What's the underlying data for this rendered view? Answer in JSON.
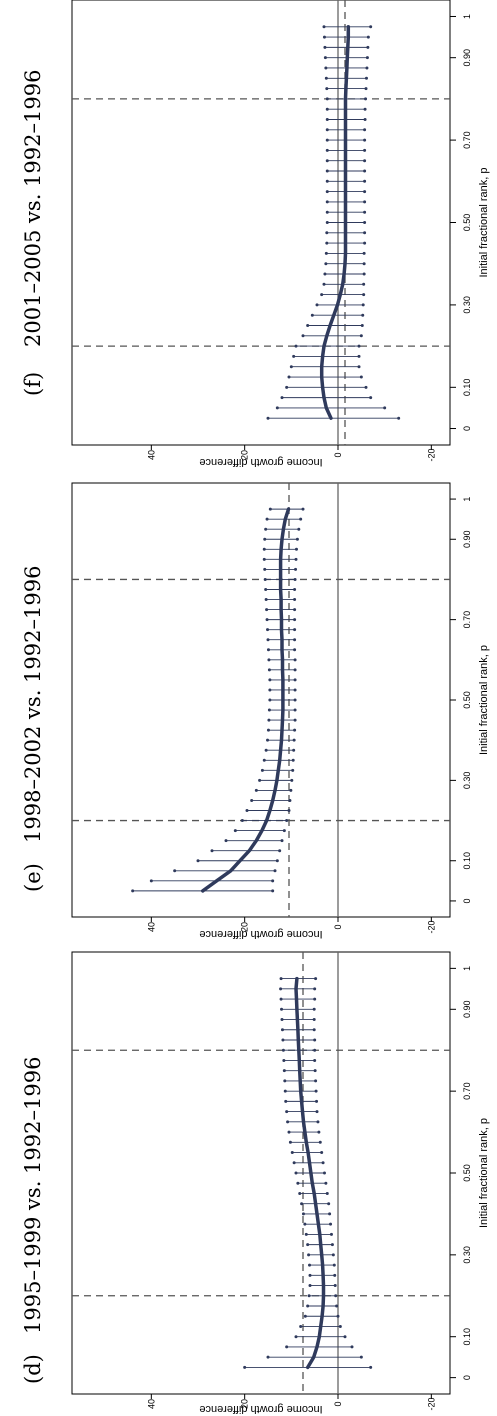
{
  "chart_data": [
    {
      "type": "line",
      "panel_label": "(d)",
      "title": "1995–1999 vs. 1992–1996",
      "xlabel": "Initial fractional rank, p",
      "ylabel": "Income growth difference",
      "xlim": [
        -0.04,
        1.04
      ],
      "ylim": [
        -24,
        57
      ],
      "x_ticks": [
        0,
        0.1,
        0.3,
        0.5,
        0.7,
        0.9,
        1
      ],
      "x_tick_labels": [
        "0",
        "0.10",
        "0.30",
        "0.50",
        "0.70",
        "0.90",
        "1"
      ],
      "y_ticks": [
        -20,
        0,
        20,
        40
      ],
      "y_tick_labels": [
        "-20",
        "0",
        "20",
        "40"
      ],
      "reference_lines": {
        "vertical": [
          0.2,
          0.8
        ],
        "horizontal_solid": 0,
        "horizontal_dashed": 7.5
      },
      "x": [
        0.025,
        0.05,
        0.075,
        0.1,
        0.125,
        0.15,
        0.175,
        0.2,
        0.225,
        0.25,
        0.275,
        0.3,
        0.325,
        0.35,
        0.375,
        0.4,
        0.425,
        0.45,
        0.475,
        0.5,
        0.525,
        0.55,
        0.575,
        0.6,
        0.625,
        0.65,
        0.675,
        0.7,
        0.725,
        0.75,
        0.775,
        0.8,
        0.825,
        0.85,
        0.875,
        0.9,
        0.925,
        0.95,
        0.975
      ],
      "estimate": [
        6.5,
        5.2,
        4.5,
        4.0,
        3.7,
        3.4,
        3.2,
        3.1,
        3.1,
        3.2,
        3.3,
        3.5,
        3.7,
        3.9,
        4.2,
        4.5,
        4.8,
        5.1,
        5.5,
        5.8,
        6.1,
        6.4,
        6.8,
        7.1,
        7.4,
        7.6,
        7.8,
        8.0,
        8.1,
        8.2,
        8.3,
        8.4,
        8.5,
        8.6,
        8.7,
        8.8,
        8.9,
        9.0,
        8.8
      ],
      "ci_lower": [
        -7,
        -5,
        -3,
        -1.5,
        -0.5,
        0,
        0.3,
        0.5,
        0.6,
        0.7,
        0.8,
        1.0,
        1.2,
        1.4,
        1.6,
        1.8,
        2.0,
        2.3,
        2.6,
        2.9,
        3.2,
        3.5,
        3.8,
        4.1,
        4.3,
        4.5,
        4.6,
        4.7,
        4.8,
        4.9,
        5.0,
        5.0,
        5.0,
        5.1,
        5.1,
        5.1,
        5.0,
        5.0,
        4.8
      ],
      "ci_upper": [
        20,
        15,
        11,
        9,
        8,
        7,
        6.5,
        6.2,
        6.0,
        6.0,
        6.1,
        6.3,
        6.5,
        6.8,
        7.1,
        7.4,
        7.8,
        8.2,
        8.6,
        9.0,
        9.4,
        9.8,
        10.2,
        10.5,
        10.8,
        11.0,
        11.2,
        11.3,
        11.4,
        11.5,
        11.6,
        11.7,
        11.8,
        11.9,
        12.0,
        12.1,
        12.2,
        12.3,
        12.2
      ]
    },
    {
      "type": "line",
      "panel_label": "(e)",
      "title": "1998–2002 vs. 1992–1996",
      "xlabel": "Initial fractional rank, p",
      "ylabel": "Income growth difference",
      "xlim": [
        -0.04,
        1.04
      ],
      "ylim": [
        -24,
        57
      ],
      "x_ticks": [
        0,
        0.1,
        0.3,
        0.5,
        0.7,
        0.9,
        1
      ],
      "x_tick_labels": [
        "0",
        "0.10",
        "0.30",
        "0.50",
        "0.70",
        "0.90",
        "1"
      ],
      "y_ticks": [
        -20,
        0,
        20,
        40
      ],
      "y_tick_labels": [
        "-20",
        "0",
        "20",
        "40"
      ],
      "reference_lines": {
        "vertical": [
          0.2,
          0.8
        ],
        "horizontal_solid": 0,
        "horizontal_dashed": 10.5
      },
      "x": [
        0.025,
        0.05,
        0.075,
        0.1,
        0.125,
        0.15,
        0.175,
        0.2,
        0.225,
        0.25,
        0.275,
        0.3,
        0.325,
        0.35,
        0.375,
        0.4,
        0.425,
        0.45,
        0.475,
        0.5,
        0.525,
        0.55,
        0.575,
        0.6,
        0.625,
        0.65,
        0.675,
        0.7,
        0.725,
        0.75,
        0.775,
        0.8,
        0.825,
        0.85,
        0.875,
        0.9,
        0.925,
        0.95,
        0.975
      ],
      "estimate": [
        29,
        26,
        23,
        21,
        19,
        17.5,
        16.3,
        15.3,
        14.6,
        14.0,
        13.5,
        13.1,
        12.8,
        12.5,
        12.3,
        12.1,
        12.0,
        11.9,
        11.8,
        11.8,
        11.8,
        11.8,
        11.9,
        11.9,
        12.0,
        12.0,
        12.1,
        12.1,
        12.2,
        12.2,
        12.3,
        12.3,
        12.3,
        12.3,
        12.2,
        12.0,
        11.7,
        11.3,
        10.6
      ],
      "ci_lower": [
        14,
        14,
        13.5,
        13,
        12.5,
        12,
        11.5,
        11,
        10.5,
        10.3,
        10.1,
        9.9,
        9.7,
        9.6,
        9.5,
        9.4,
        9.3,
        9.2,
        9.2,
        9.2,
        9.2,
        9.2,
        9.2,
        9.2,
        9.3,
        9.3,
        9.3,
        9.3,
        9.3,
        9.3,
        9.3,
        9.2,
        9.1,
        9.0,
        8.9,
        8.7,
        8.4,
        8.0,
        7.5
      ],
      "ci_upper": [
        44,
        40,
        35,
        30,
        27,
        24,
        22,
        20.5,
        19.5,
        18.5,
        17.5,
        16.8,
        16.2,
        15.8,
        15.4,
        15.1,
        14.9,
        14.8,
        14.7,
        14.6,
        14.6,
        14.6,
        14.7,
        14.8,
        14.9,
        15.0,
        15.1,
        15.2,
        15.3,
        15.4,
        15.5,
        15.6,
        15.7,
        15.8,
        15.8,
        15.7,
        15.5,
        15.2,
        14.5
      ]
    },
    {
      "type": "line",
      "panel_label": "(f)",
      "title": "2001–2005 vs. 1992–1996",
      "xlabel": "Initial fractional rank, p",
      "ylabel": "Income growth difference",
      "xlim": [
        -0.04,
        1.04
      ],
      "ylim": [
        -24,
        57
      ],
      "x_ticks": [
        0,
        0.1,
        0.3,
        0.5,
        0.7,
        0.9,
        1
      ],
      "x_tick_labels": [
        "0",
        "0.10",
        "0.30",
        "0.50",
        "0.70",
        "0.90",
        "1"
      ],
      "y_ticks": [
        -20,
        0,
        20,
        40
      ],
      "y_tick_labels": [
        "-20",
        "0",
        "20",
        "40"
      ],
      "reference_lines": {
        "vertical": [
          0.2,
          0.8
        ],
        "horizontal_solid": 0,
        "horizontal_dashed": -1.5
      },
      "x": [
        0.025,
        0.05,
        0.075,
        0.1,
        0.125,
        0.15,
        0.175,
        0.2,
        0.225,
        0.25,
        0.275,
        0.3,
        0.325,
        0.35,
        0.375,
        0.4,
        0.425,
        0.45,
        0.475,
        0.5,
        0.525,
        0.55,
        0.575,
        0.6,
        0.625,
        0.65,
        0.675,
        0.7,
        0.725,
        0.75,
        0.775,
        0.8,
        0.825,
        0.85,
        0.875,
        0.9,
        0.925,
        0.95,
        0.975
      ],
      "estimate": [
        1.5,
        2.5,
        3.0,
        3.3,
        3.5,
        3.5,
        3.3,
        3.0,
        2.4,
        1.7,
        0.9,
        0.1,
        -0.5,
        -1.0,
        -1.3,
        -1.5,
        -1.6,
        -1.6,
        -1.6,
        -1.6,
        -1.6,
        -1.6,
        -1.6,
        -1.6,
        -1.6,
        -1.6,
        -1.6,
        -1.6,
        -1.6,
        -1.6,
        -1.6,
        -1.6,
        -1.7,
        -1.8,
        -1.9,
        -2.0,
        -2.1,
        -2.2,
        -2.2
      ],
      "ci_lower": [
        -13,
        -10,
        -7,
        -6,
        -5,
        -4.5,
        -4.5,
        -4.5,
        -5,
        -5.2,
        -5.3,
        -5.4,
        -5.5,
        -5.5,
        -5.6,
        -5.6,
        -5.6,
        -5.7,
        -5.7,
        -5.7,
        -5.7,
        -5.7,
        -5.7,
        -5.7,
        -5.7,
        -5.7,
        -5.7,
        -5.7,
        -5.7,
        -5.8,
        -5.8,
        -5.9,
        -6.0,
        -6.1,
        -6.2,
        -6.3,
        -6.4,
        -6.5,
        -7.0
      ],
      "ci_upper": [
        15,
        13,
        12,
        11,
        10.5,
        10,
        9.5,
        9,
        7.5,
        6.5,
        5.5,
        4.5,
        3.5,
        3.0,
        2.8,
        2.6,
        2.5,
        2.4,
        2.4,
        2.3,
        2.3,
        2.3,
        2.3,
        2.3,
        2.3,
        2.3,
        2.3,
        2.3,
        2.3,
        2.3,
        2.3,
        2.3,
        2.4,
        2.5,
        2.6,
        2.7,
        2.8,
        2.9,
        3.0
      ]
    }
  ]
}
